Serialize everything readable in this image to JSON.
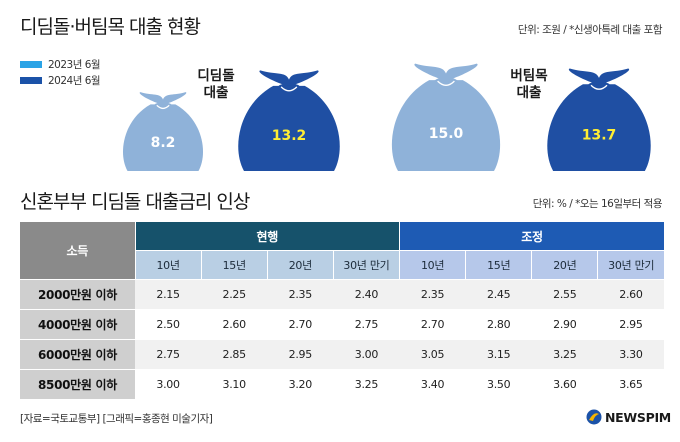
{
  "colors": {
    "y2023": "#2aa3e6",
    "y2024": "#1b52a8",
    "bag_light": "#8fb2d9",
    "bag_dark": "#1f4fa3"
  },
  "chart1": {
    "title": "디딤돌·버팀목 대출 현황",
    "unit": "단위: 조원 / *신생아특례 대출 포함",
    "legend": [
      "2023년 6월",
      "2024년 6월"
    ]
  },
  "chart2": {
    "title": "신혼부부 디딤돌 대출금리 인상",
    "unit": "단위: % / *오는 16일부터 적용"
  },
  "chart_data": [
    {
      "type": "bar",
      "title": "디딤돌·버팀목 대출 현황",
      "categories": [
        "디딤돌 대출",
        "버팀목 대출"
      ],
      "series": [
        {
          "name": "2023년 6월",
          "values": [
            8.2,
            15.0
          ]
        },
        {
          "name": "2024년 6월",
          "values": [
            13.2,
            13.7
          ]
        }
      ],
      "labels": [
        "8.2",
        "13.2",
        "15.0",
        "13.7"
      ],
      "category_labels": [
        [
          "디딤돌",
          "대출"
        ],
        [
          "버팀목",
          "대출"
        ]
      ]
    },
    {
      "type": "table",
      "title": "신혼부부 디딤돌 대출금리 인상",
      "row_header": "소득",
      "groups": [
        {
          "name": "현행",
          "columns": [
            "10년",
            "15년",
            "20년",
            "30년 만기"
          ]
        },
        {
          "name": "조정",
          "columns": [
            "10년",
            "15년",
            "20년",
            "30년 만기"
          ]
        }
      ],
      "rows": [
        {
          "label": "2000만원 이하",
          "values": [
            "2.15",
            "2.25",
            "2.35",
            "2.40",
            "2.35",
            "2.45",
            "2.55",
            "2.60"
          ]
        },
        {
          "label": "4000만원 이하",
          "values": [
            "2.50",
            "2.60",
            "2.70",
            "2.75",
            "2.70",
            "2.80",
            "2.90",
            "2.95"
          ]
        },
        {
          "label": "6000만원 이하",
          "values": [
            "2.75",
            "2.85",
            "2.95",
            "3.00",
            "3.05",
            "3.15",
            "3.25",
            "3.30"
          ]
        },
        {
          "label": "8500만원 이하",
          "values": [
            "3.00",
            "3.10",
            "3.20",
            "3.25",
            "3.40",
            "3.50",
            "3.60",
            "3.65"
          ]
        }
      ]
    }
  ],
  "footer": "[자료=국토교통부] [그래픽=홍종현 미술기자]",
  "logo": "NEWSPIM"
}
